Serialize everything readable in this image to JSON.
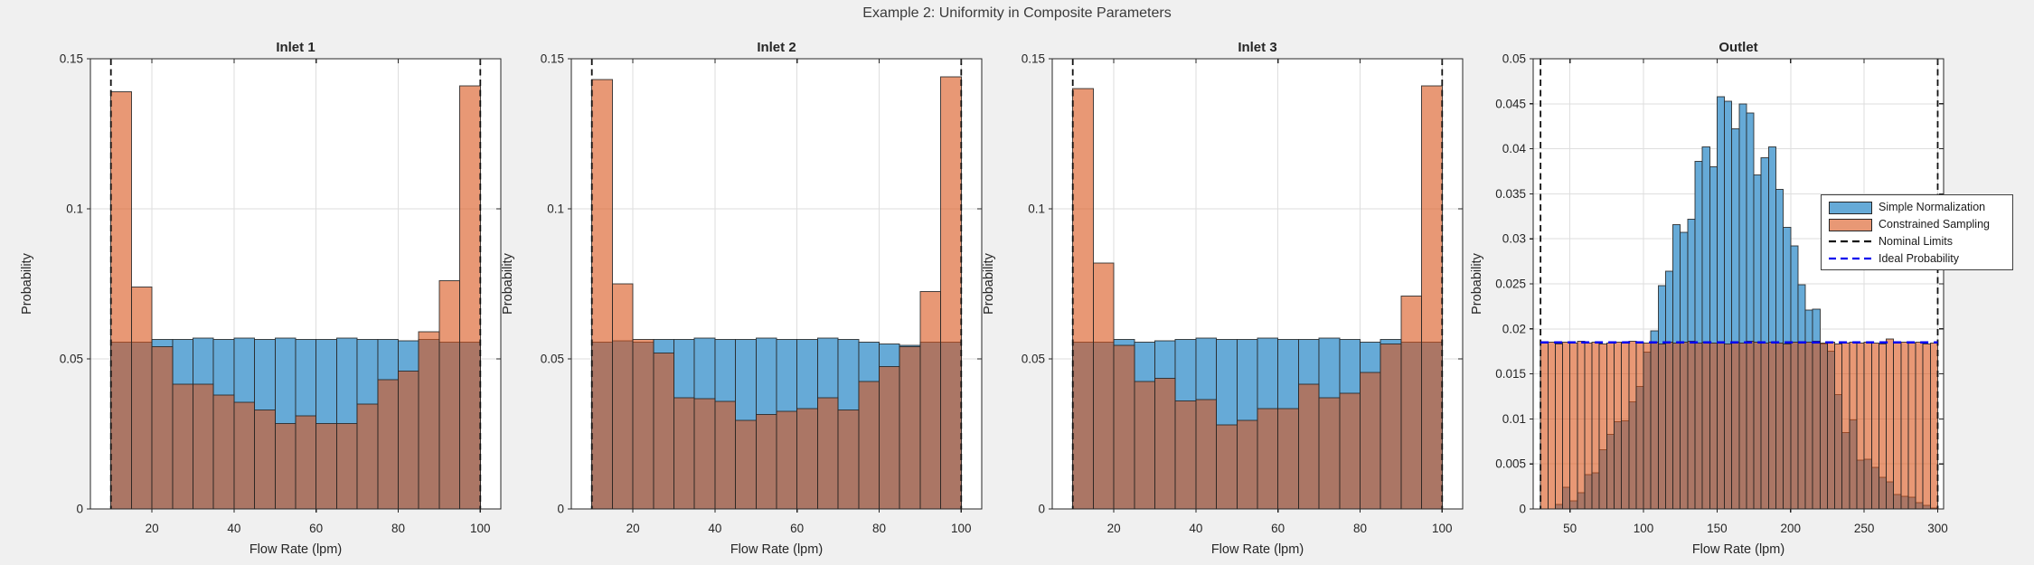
{
  "figure": {
    "title": "Example 2: Uniformity in Composite Parameters",
    "background": "#F0F0F0",
    "colors": {
      "blue": "#66AAD7",
      "orange_rgba": "rgba(217,83,25,0.6)",
      "orange_flat": "#E89875",
      "overlap": "#AB7665",
      "edge": "#262626",
      "nominal": "#111111",
      "ideal": "#0000EE",
      "grid": "#DEDEDE",
      "axes_bg": "#FFFFFF",
      "axis": "#262626",
      "text": "#262626"
    }
  },
  "legend": {
    "entries": [
      {
        "label": "Simple Normalization",
        "type": "patch",
        "color": "#66AAD7"
      },
      {
        "label": "Constrained Sampling",
        "type": "patch",
        "color": "#E89875"
      },
      {
        "label": "Nominal Limits",
        "type": "dashed-line",
        "color": "#111111"
      },
      {
        "label": "Ideal Probability",
        "type": "dashed-line",
        "color": "#0000EE"
      }
    ]
  },
  "chart_data": [
    {
      "type": "bar",
      "title": "Inlet 1",
      "xlabel": "Flow Rate (lpm)",
      "ylabel": "Probability",
      "xlim": [
        5,
        105
      ],
      "ylim": [
        0,
        0.15
      ],
      "xticks": [
        20,
        40,
        60,
        80,
        100
      ],
      "yticks": [
        0,
        0.05,
        0.1,
        0.15
      ],
      "bin_start": 10,
      "bin_width": 5,
      "nominal_limits": [
        10,
        100
      ],
      "ideal_probability": null,
      "series": [
        {
          "name": "Simple Normalization",
          "values": [
            0.0555,
            0.0555,
            0.0565,
            0.0565,
            0.057,
            0.0565,
            0.057,
            0.0565,
            0.057,
            0.0565,
            0.0565,
            0.057,
            0.0565,
            0.0565,
            0.056,
            0.0565,
            0.0555,
            0.0555
          ]
        },
        {
          "name": "Constrained Sampling",
          "values": [
            0.139,
            0.074,
            0.054,
            0.0415,
            0.0415,
            0.038,
            0.0355,
            0.033,
            0.0285,
            0.031,
            0.0285,
            0.0285,
            0.035,
            0.043,
            0.046,
            0.059,
            0.076,
            0.141
          ]
        }
      ]
    },
    {
      "type": "bar",
      "title": "Inlet 2",
      "xlabel": "Flow Rate (lpm)",
      "ylabel": "Probability",
      "xlim": [
        5,
        105
      ],
      "ylim": [
        0,
        0.15
      ],
      "xticks": [
        20,
        40,
        60,
        80,
        100
      ],
      "yticks": [
        0,
        0.05,
        0.1,
        0.15
      ],
      "bin_start": 10,
      "bin_width": 5,
      "nominal_limits": [
        10,
        100
      ],
      "ideal_probability": null,
      "series": [
        {
          "name": "Simple Normalization",
          "values": [
            0.0555,
            0.056,
            0.0555,
            0.0565,
            0.0565,
            0.057,
            0.0565,
            0.0565,
            0.057,
            0.0565,
            0.0565,
            0.057,
            0.0565,
            0.0555,
            0.055,
            0.0545,
            0.0555,
            0.0555
          ]
        },
        {
          "name": "Constrained Sampling",
          "values": [
            0.143,
            0.075,
            0.0565,
            0.052,
            0.037,
            0.0368,
            0.0358,
            0.0295,
            0.0315,
            0.0325,
            0.0335,
            0.037,
            0.033,
            0.0425,
            0.0475,
            0.054,
            0.0725,
            0.144
          ]
        }
      ]
    },
    {
      "type": "bar",
      "title": "Inlet 3",
      "xlabel": "Flow Rate (lpm)",
      "ylabel": "Probability",
      "xlim": [
        5,
        105
      ],
      "ylim": [
        0,
        0.15
      ],
      "xticks": [
        20,
        40,
        60,
        80,
        100
      ],
      "yticks": [
        0,
        0.05,
        0.1,
        0.15
      ],
      "bin_start": 10,
      "bin_width": 5,
      "nominal_limits": [
        10,
        100
      ],
      "ideal_probability": null,
      "series": [
        {
          "name": "Simple Normalization",
          "values": [
            0.0555,
            0.0555,
            0.0565,
            0.0555,
            0.056,
            0.0565,
            0.057,
            0.0565,
            0.0565,
            0.057,
            0.0565,
            0.0565,
            0.057,
            0.0565,
            0.0555,
            0.0565,
            0.0555,
            0.0555
          ]
        },
        {
          "name": "Constrained Sampling",
          "values": [
            0.14,
            0.082,
            0.0545,
            0.0425,
            0.0435,
            0.036,
            0.0365,
            0.028,
            0.0295,
            0.0335,
            0.0335,
            0.0415,
            0.037,
            0.0385,
            0.0455,
            0.055,
            0.071,
            0.141
          ]
        }
      ]
    },
    {
      "type": "bar",
      "title": "Outlet",
      "xlabel": "Flow Rate (lpm)",
      "ylabel": "Probability",
      "xlim": [
        25,
        304
      ],
      "ylim": [
        0,
        0.05
      ],
      "xticks": [
        50,
        100,
        150,
        200,
        250,
        300
      ],
      "yticks": [
        0,
        0.005,
        0.01,
        0.015,
        0.02,
        0.025,
        0.03,
        0.035,
        0.04,
        0.045,
        0.05
      ],
      "bin_start": 30,
      "bin_width": 5,
      "nominal_limits": [
        30,
        300
      ],
      "ideal_probability": 0.0185,
      "series": [
        {
          "name": "Simple Normalization",
          "values": [
            0,
            0,
            0.0005,
            0.0024,
            0.0009,
            0.0018,
            0.0038,
            0.004,
            0.0066,
            0.0083,
            0.0097,
            0.0098,
            0.0119,
            0.0136,
            0.0174,
            0.0198,
            0.0248,
            0.0264,
            0.0316,
            0.0307,
            0.0322,
            0.0386,
            0.0402,
            0.038,
            0.0458,
            0.0453,
            0.0422,
            0.045,
            0.044,
            0.0371,
            0.039,
            0.0402,
            0.0355,
            0.0313,
            0.0292,
            0.0249,
            0.0221,
            0.0222,
            0.0183,
            0.0175,
            0.0127,
            0.0085,
            0.0099,
            0.0054,
            0.0055,
            0.0046,
            0.0035,
            0.003,
            0.0016,
            0.0014,
            0.0013,
            0.0007,
            0.0004,
            0.0001
          ]
        },
        {
          "name": "Constrained Sampling",
          "values": [
            0.0184,
            0.0185,
            0.0183,
            0.0185,
            0.0184,
            0.0186,
            0.0184,
            0.0185,
            0.0183,
            0.0184,
            0.0185,
            0.0184,
            0.0186,
            0.0185,
            0.0184,
            0.0185,
            0.0183,
            0.0185,
            0.0184,
            0.0185,
            0.0186,
            0.0184,
            0.0185,
            0.0184,
            0.0185,
            0.0183,
            0.0185,
            0.0184,
            0.0186,
            0.0185,
            0.0184,
            0.0185,
            0.0184,
            0.0183,
            0.0185,
            0.0184,
            0.0185,
            0.0186,
            0.0184,
            0.0185,
            0.0183,
            0.0184,
            0.0185,
            0.0184,
            0.0185,
            0.0184,
            0.0183,
            0.0189,
            0.0184,
            0.0185,
            0.0184,
            0.0185,
            0.0183,
            0.0184
          ]
        }
      ]
    }
  ]
}
